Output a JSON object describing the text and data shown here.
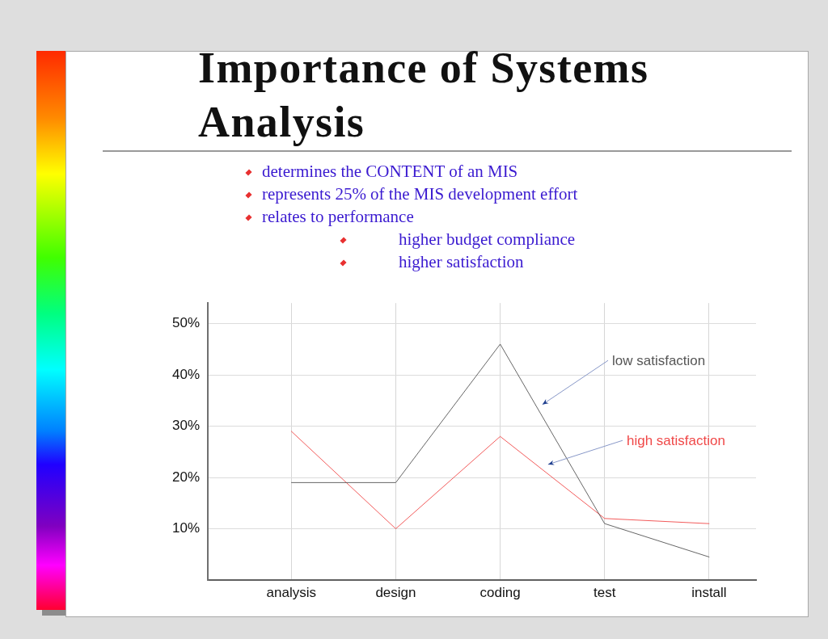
{
  "chart_data": {
    "type": "line",
    "title": "Importance of Systems Analysis",
    "annotations": [
      "determines the CONTENT of an MIS",
      "represents 25% of the MIS development effort",
      "relates to performance",
      "higher budget compliance",
      "higher satisfaction"
    ],
    "categories": [
      "analysis",
      "design",
      "coding",
      "test",
      "install"
    ],
    "series": [
      {
        "name": "low satisfaction",
        "color": "#555555",
        "values": [
          19,
          19,
          46,
          11,
          4.5
        ]
      },
      {
        "name": "high satisfaction",
        "color": "#f04848",
        "values": [
          29,
          10,
          28,
          12,
          11
        ]
      }
    ],
    "ylim": [
      0,
      54
    ],
    "yticks": [
      {
        "value": 10,
        "label": "10%"
      },
      {
        "value": 20,
        "label": "20%"
      },
      {
        "value": 30,
        "label": "30%"
      },
      {
        "value": 40,
        "label": "40%"
      },
      {
        "value": 50,
        "label": "50%"
      }
    ],
    "grid": true,
    "legend": false,
    "marker": "none",
    "line_style": "solid"
  }
}
